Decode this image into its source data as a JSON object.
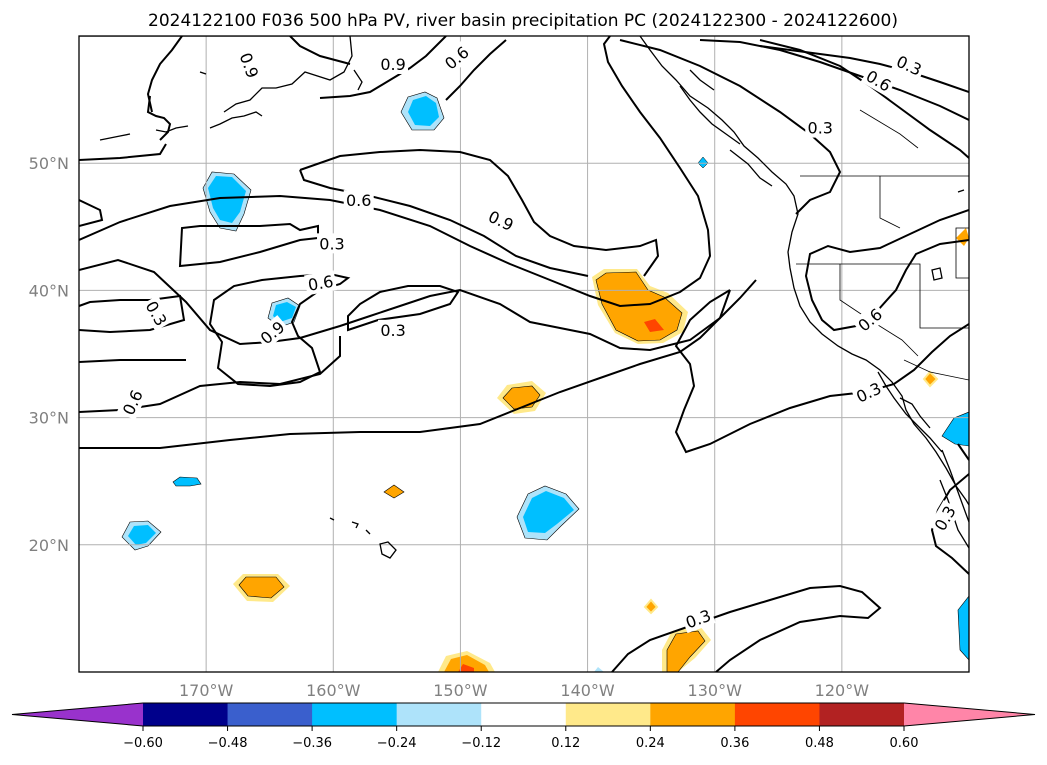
{
  "title": "2024122100 F036 500 hPa PV, river basin precipitation PC (2024122300 - 2024122600)",
  "map": {
    "lon_range": [
      -180,
      -110
    ],
    "lat_range": [
      10,
      60
    ],
    "lat_ticks": [
      "50°N",
      "40°N",
      "30°N",
      "20°N"
    ],
    "lon_ticks": [
      "170°W",
      "160°W",
      "150°W",
      "140°W",
      "130°W",
      "120°W"
    ],
    "gridlines": true,
    "contour_labels": [
      {
        "text": "0.9",
        "lon": -166.6,
        "lat": 57.7,
        "rot": 70
      },
      {
        "text": "0.9",
        "lon": -155.3,
        "lat": 57.8,
        "rot": 0
      },
      {
        "text": "0.6",
        "lon": -150.3,
        "lat": 58.3,
        "rot": -40
      },
      {
        "text": "0.6",
        "lon": -158.0,
        "lat": 47.1,
        "rot": 0
      },
      {
        "text": "0.9",
        "lon": -146.8,
        "lat": 45.5,
        "rot": 25
      },
      {
        "text": "0.3",
        "lon": -160.1,
        "lat": 43.7,
        "rot": 0
      },
      {
        "text": "0.6",
        "lon": -161.0,
        "lat": 40.6,
        "rot": -10
      },
      {
        "text": "0.3",
        "lon": -173.9,
        "lat": 38.2,
        "rot": 60
      },
      {
        "text": "0.9",
        "lon": -164.8,
        "lat": 36.7,
        "rot": -40
      },
      {
        "text": "0.3",
        "lon": -155.3,
        "lat": 36.9,
        "rot": 0
      },
      {
        "text": "0.6",
        "lon": -175.8,
        "lat": 31.2,
        "rot": -65
      },
      {
        "text": "0.3",
        "lon": -121.7,
        "lat": 52.8,
        "rot": 0
      },
      {
        "text": "0.6",
        "lon": -117.1,
        "lat": 56.5,
        "rot": 30
      },
      {
        "text": "0.3",
        "lon": -114.7,
        "lat": 57.7,
        "rot": 25
      },
      {
        "text": "0.6",
        "lon": -117.8,
        "lat": 37.7,
        "rot": -40
      },
      {
        "text": "0.3",
        "lon": -117.9,
        "lat": 32.0,
        "rot": -25
      },
      {
        "text": "0.3",
        "lon": -111.9,
        "lat": 22.1,
        "rot": -60
      },
      {
        "text": "0.3",
        "lon": -131.3,
        "lat": 14.2,
        "rot": -20
      }
    ],
    "colors": {
      "neg_light": "#aee3fa",
      "neg_mid": "#00bfff",
      "pos_light": "#ffe98a",
      "pos_mid": "#ffa500",
      "pos_dark": "#ff4500"
    }
  },
  "colorbar": {
    "colors": [
      "#9932cc",
      "#00008b",
      "#3a5fcd",
      "#00bfff",
      "#aee3fa",
      "#ffffff",
      "#ffe98a",
      "#ffa500",
      "#ff4500",
      "#b22222",
      "#ff85a8"
    ],
    "ticks": [
      "−0.60",
      "−0.48",
      "−0.36",
      "−0.24",
      "−0.12",
      "0.12",
      "0.24",
      "0.36",
      "0.48",
      "0.60"
    ],
    "extend": "both"
  }
}
